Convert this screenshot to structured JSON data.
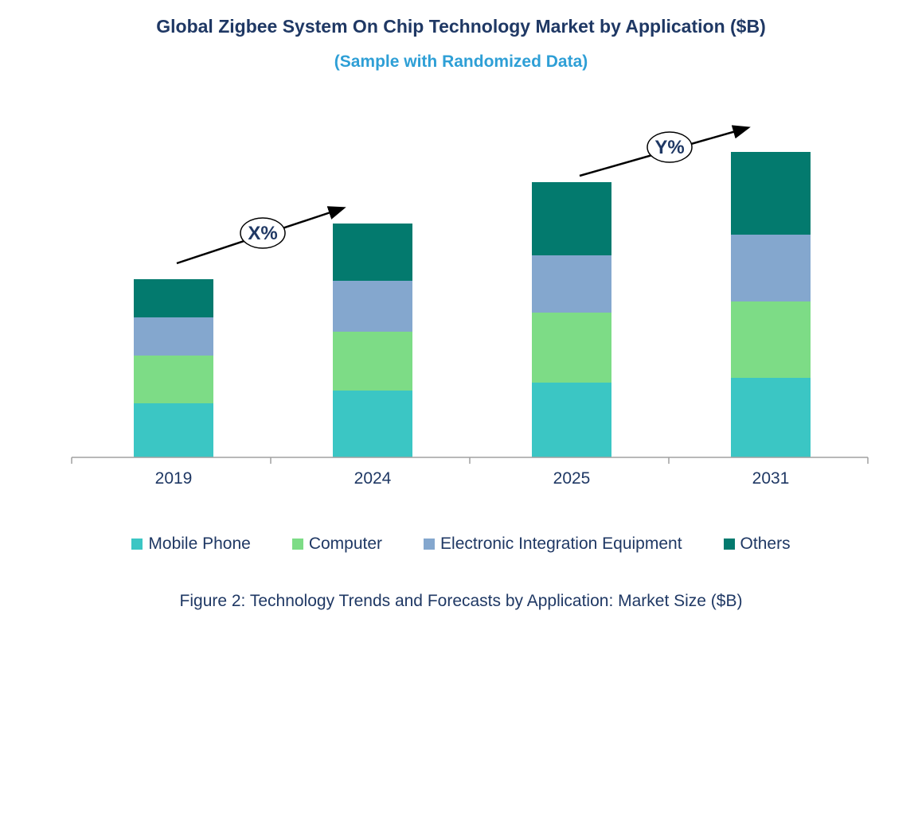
{
  "title": "Global Zigbee System On Chip Technology Market by Application ($B)",
  "subtitle": "(Sample with Randomized Data)",
  "caption": "Figure 2: Technology Trends and Forecasts by Application: Market Size ($B)",
  "annotations": {
    "growth_left": "X%",
    "growth_right": "Y%"
  },
  "colors": {
    "title_text": "#1F3864",
    "subtitle_text": "#2E9FD6",
    "axis": "#A0A0A0",
    "arrow": "#000000"
  },
  "chart_data": {
    "type": "bar",
    "stacked": true,
    "title": "Global Zigbee System On Chip Technology Market by Application ($B)",
    "xlabel": "",
    "ylabel": "",
    "units": "$B",
    "y_axis_visible": false,
    "grid": false,
    "legend_position": "bottom",
    "categories": [
      "2019",
      "2024",
      "2025",
      "2031"
    ],
    "series": [
      {
        "name": "Mobile Phone",
        "color": "#3BC6C4",
        "values": [
          1.7,
          2.1,
          2.35,
          2.5
        ]
      },
      {
        "name": "Computer",
        "color": "#7DDC86",
        "values": [
          1.5,
          1.85,
          2.2,
          2.4
        ]
      },
      {
        "name": "Electronic Integration Equipment",
        "color": "#84A7CE",
        "values": [
          1.2,
          1.6,
          1.8,
          2.1
        ]
      },
      {
        "name": "Others",
        "color": "#037A6E",
        "values": [
          1.2,
          1.8,
          2.3,
          2.6
        ]
      }
    ],
    "totals": [
      5.6,
      7.35,
      8.65,
      9.6
    ]
  }
}
